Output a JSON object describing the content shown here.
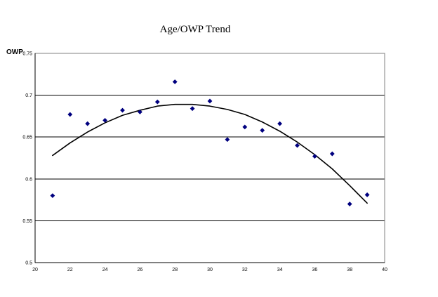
{
  "chart_data": {
    "type": "scatter",
    "title": "Age/OWP Trend",
    "xlabel": "",
    "ylabel": "OWP",
    "xlim": [
      20,
      40
    ],
    "ylim": [
      0.5,
      0.75
    ],
    "xticks": [
      20,
      22,
      24,
      26,
      28,
      30,
      32,
      34,
      36,
      38,
      40
    ],
    "yticks": [
      0.5,
      0.55,
      0.6,
      0.65,
      0.7,
      0.75
    ],
    "xtick_labels": [
      "20",
      "22",
      "24",
      "26",
      "28",
      "30",
      "32",
      "34",
      "36",
      "38",
      "40"
    ],
    "ytick_labels": [
      "0.5",
      "0.55",
      "0.6",
      "0.65",
      "0.7",
      "0.75"
    ],
    "grid": "horizontal",
    "legend": "none",
    "series": [
      {
        "marker": "diamond",
        "color": "#00007f",
        "points": [
          {
            "x": 21,
            "y": 0.58
          },
          {
            "x": 22,
            "y": 0.677
          },
          {
            "x": 23,
            "y": 0.666
          },
          {
            "x": 24,
            "y": 0.67
          },
          {
            "x": 25,
            "y": 0.682
          },
          {
            "x": 26,
            "y": 0.68
          },
          {
            "x": 27,
            "y": 0.692
          },
          {
            "x": 28,
            "y": 0.716
          },
          {
            "x": 29,
            "y": 0.684
          },
          {
            "x": 30,
            "y": 0.693
          },
          {
            "x": 31,
            "y": 0.647
          },
          {
            "x": 32,
            "y": 0.662
          },
          {
            "x": 33,
            "y": 0.658
          },
          {
            "x": 34,
            "y": 0.666
          },
          {
            "x": 35,
            "y": 0.64
          },
          {
            "x": 36,
            "y": 0.627
          },
          {
            "x": 37,
            "y": 0.63
          },
          {
            "x": 38,
            "y": 0.57
          },
          {
            "x": 39,
            "y": 0.581
          }
        ]
      }
    ],
    "trendline": {
      "kind": "polynomial",
      "order": 2,
      "color": "#000000",
      "points": [
        {
          "x": 21,
          "y": 0.628
        },
        {
          "x": 22,
          "y": 0.643
        },
        {
          "x": 23,
          "y": 0.656
        },
        {
          "x": 24,
          "y": 0.667
        },
        {
          "x": 25,
          "y": 0.676
        },
        {
          "x": 26,
          "y": 0.682
        },
        {
          "x": 27,
          "y": 0.687
        },
        {
          "x": 28,
          "y": 0.689
        },
        {
          "x": 29,
          "y": 0.689
        },
        {
          "x": 30,
          "y": 0.687
        },
        {
          "x": 31,
          "y": 0.683
        },
        {
          "x": 32,
          "y": 0.677
        },
        {
          "x": 33,
          "y": 0.668
        },
        {
          "x": 34,
          "y": 0.657
        },
        {
          "x": 35,
          "y": 0.644
        },
        {
          "x": 36,
          "y": 0.629
        },
        {
          "x": 37,
          "y": 0.612
        },
        {
          "x": 38,
          "y": 0.592
        },
        {
          "x": 39,
          "y": 0.571
        }
      ]
    }
  }
}
